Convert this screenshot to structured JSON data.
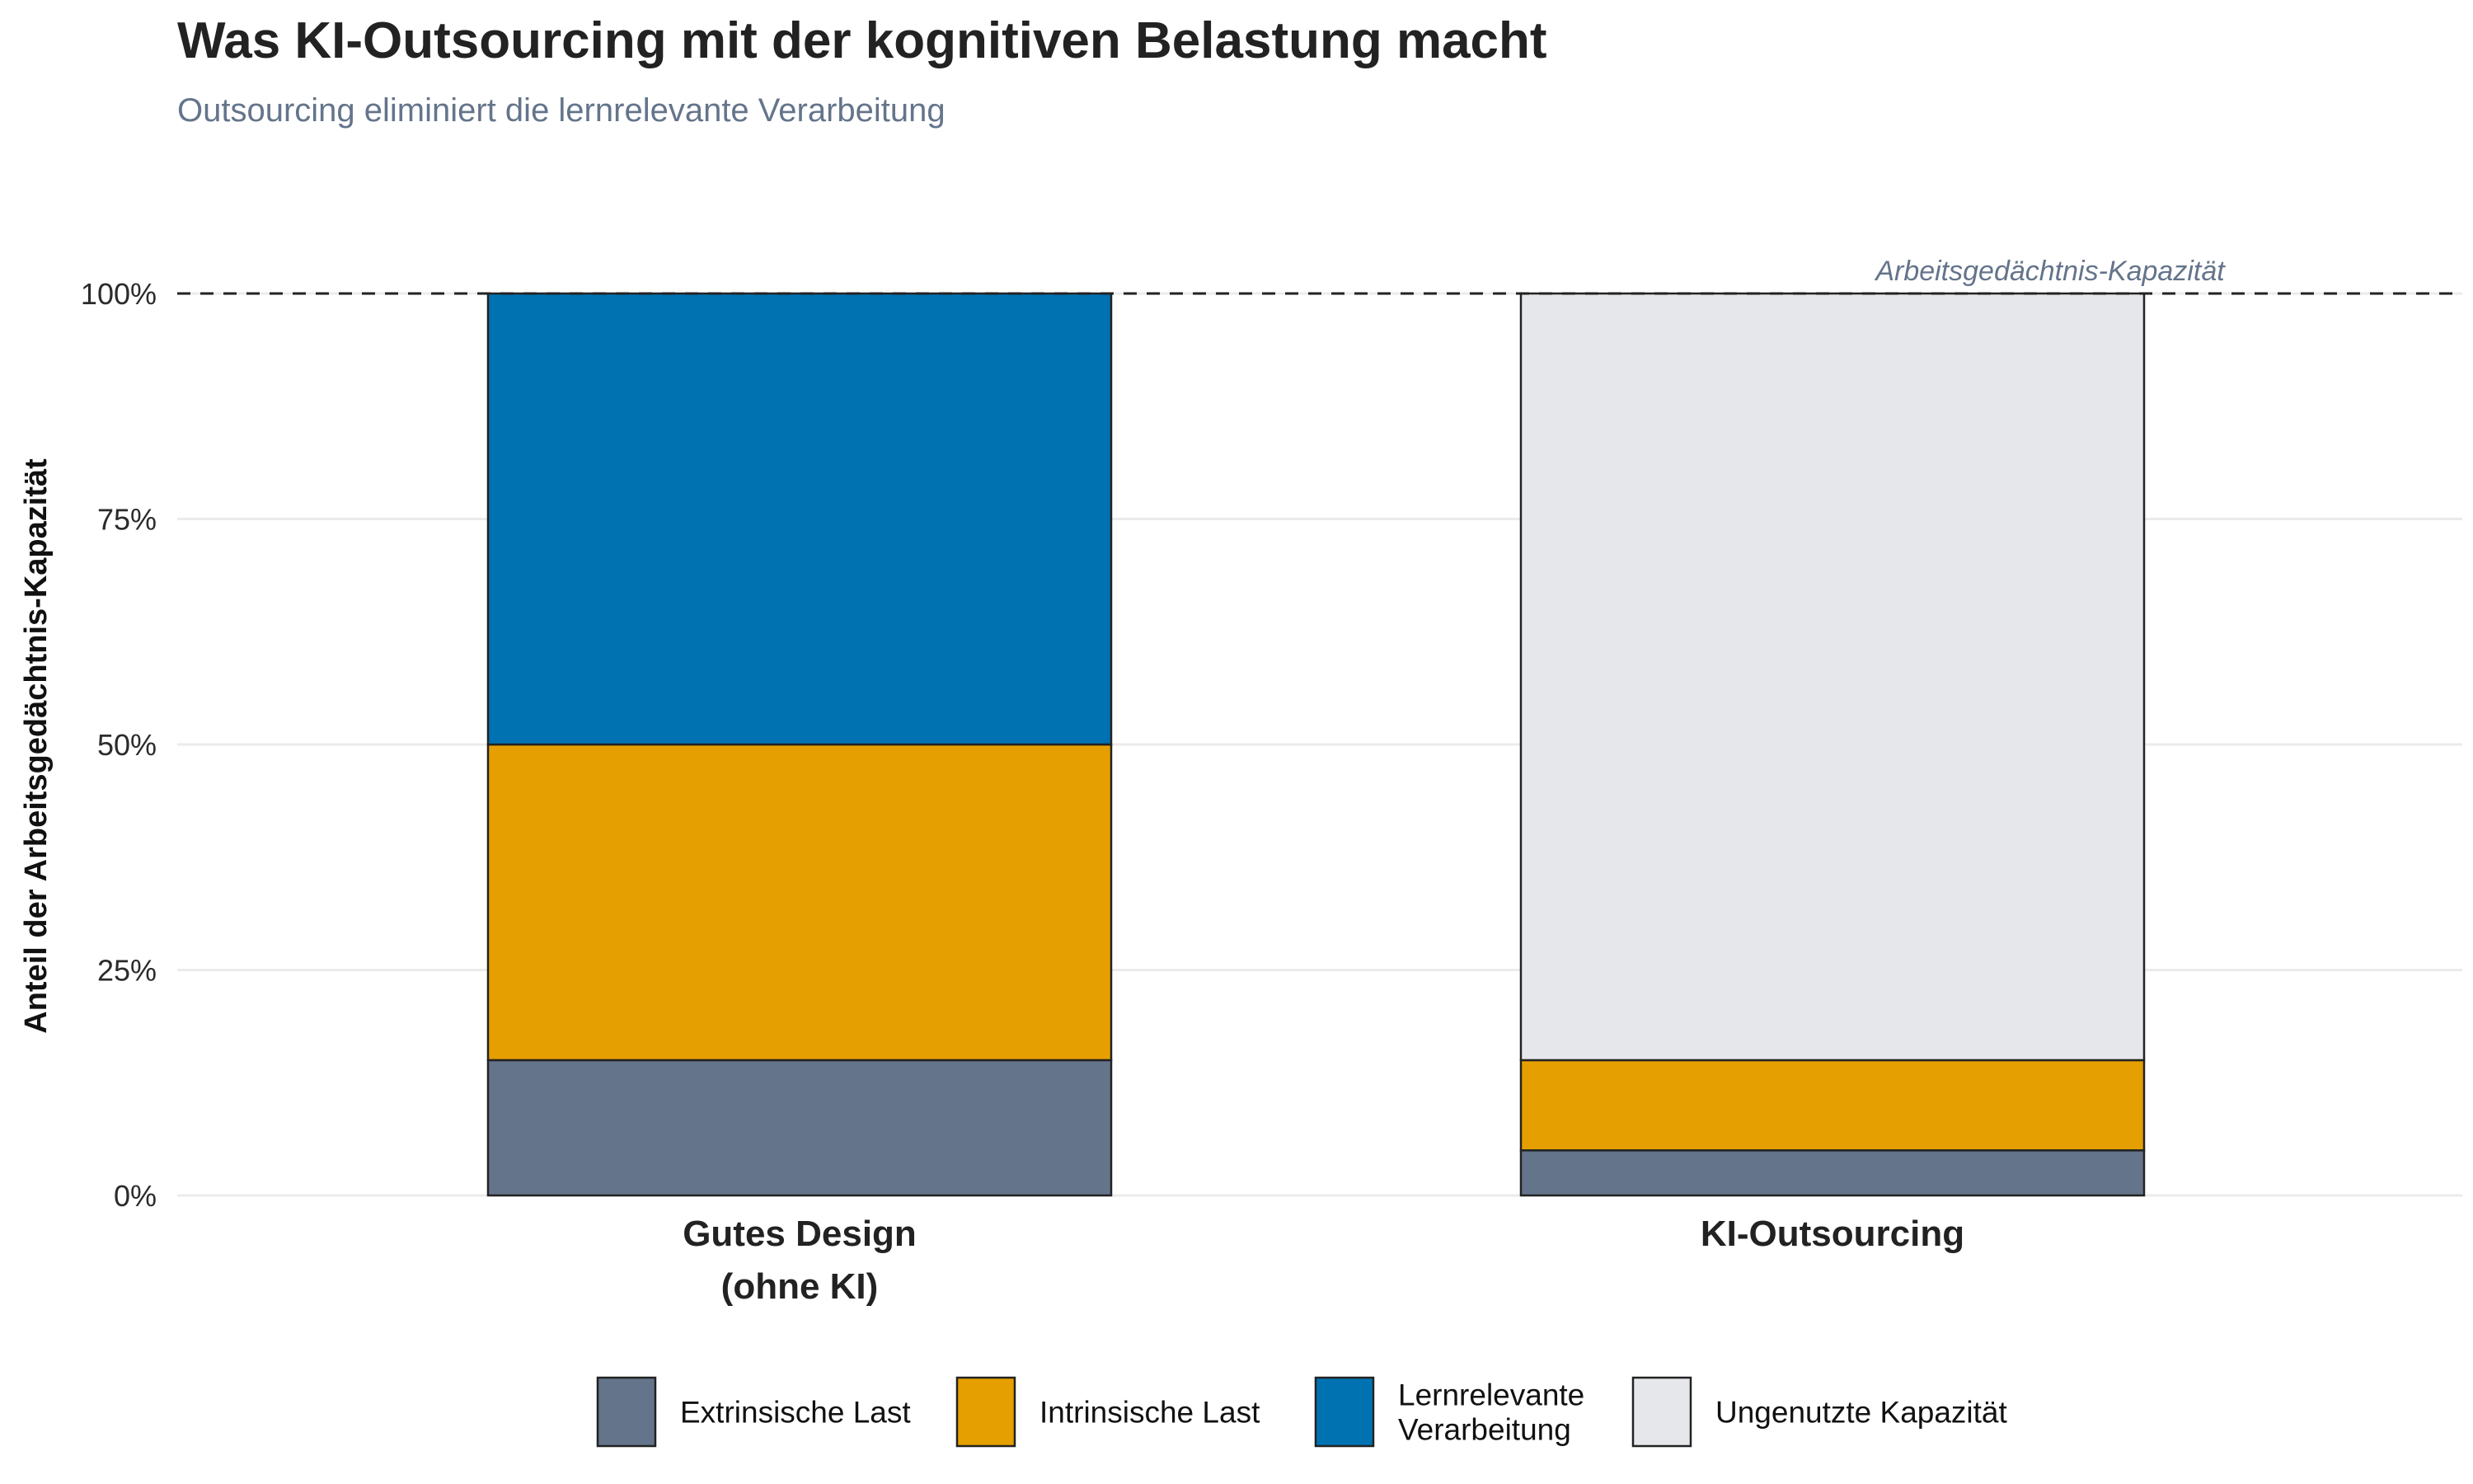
{
  "title": "Was KI-Outsourcing mit der kognitiven Belastung macht",
  "subtitle": "Outsourcing eliminiert die lernrelevante Verarbeitung",
  "chart_data": {
    "type": "bar",
    "stacked": true,
    "title": "Was KI-Outsourcing mit der kognitiven Belastung macht",
    "subtitle": "Outsourcing eliminiert die lernrelevante Verarbeitung",
    "xlabel": "",
    "ylabel": "Anteil der Arbeitsgedächtnis-Kapazität",
    "categories": [
      [
        "Gutes Design",
        "(ohne KI)"
      ],
      [
        "KI-Outsourcing"
      ]
    ],
    "series": [
      {
        "name": "Extrinsische Last",
        "color": "#64748B",
        "values": [
          15,
          5
        ]
      },
      {
        "name": "Intrinsische Last",
        "color": "#E69F00",
        "values": [
          35,
          10
        ]
      },
      {
        "name": "Lernrelevante Verarbeitung",
        "legend_lines": [
          "Lernrelevante",
          "Verarbeitung"
        ],
        "color": "#0072B2",
        "values": [
          50,
          0
        ]
      },
      {
        "name": "Ungenutzte Kapazität",
        "color": "#E5E7EB",
        "values": [
          0,
          85
        ]
      }
    ],
    "ylim": [
      0,
      100
    ],
    "yticks": [
      0,
      25,
      50,
      75,
      100
    ],
    "ytick_labels": [
      "0%",
      "25%",
      "50%",
      "75%",
      "100%"
    ],
    "grid": true,
    "reference_line": {
      "y": 100,
      "style": "dashed",
      "label": "Arbeitsgedächtnis-Kapazität"
    },
    "legend_position": "bottom"
  }
}
